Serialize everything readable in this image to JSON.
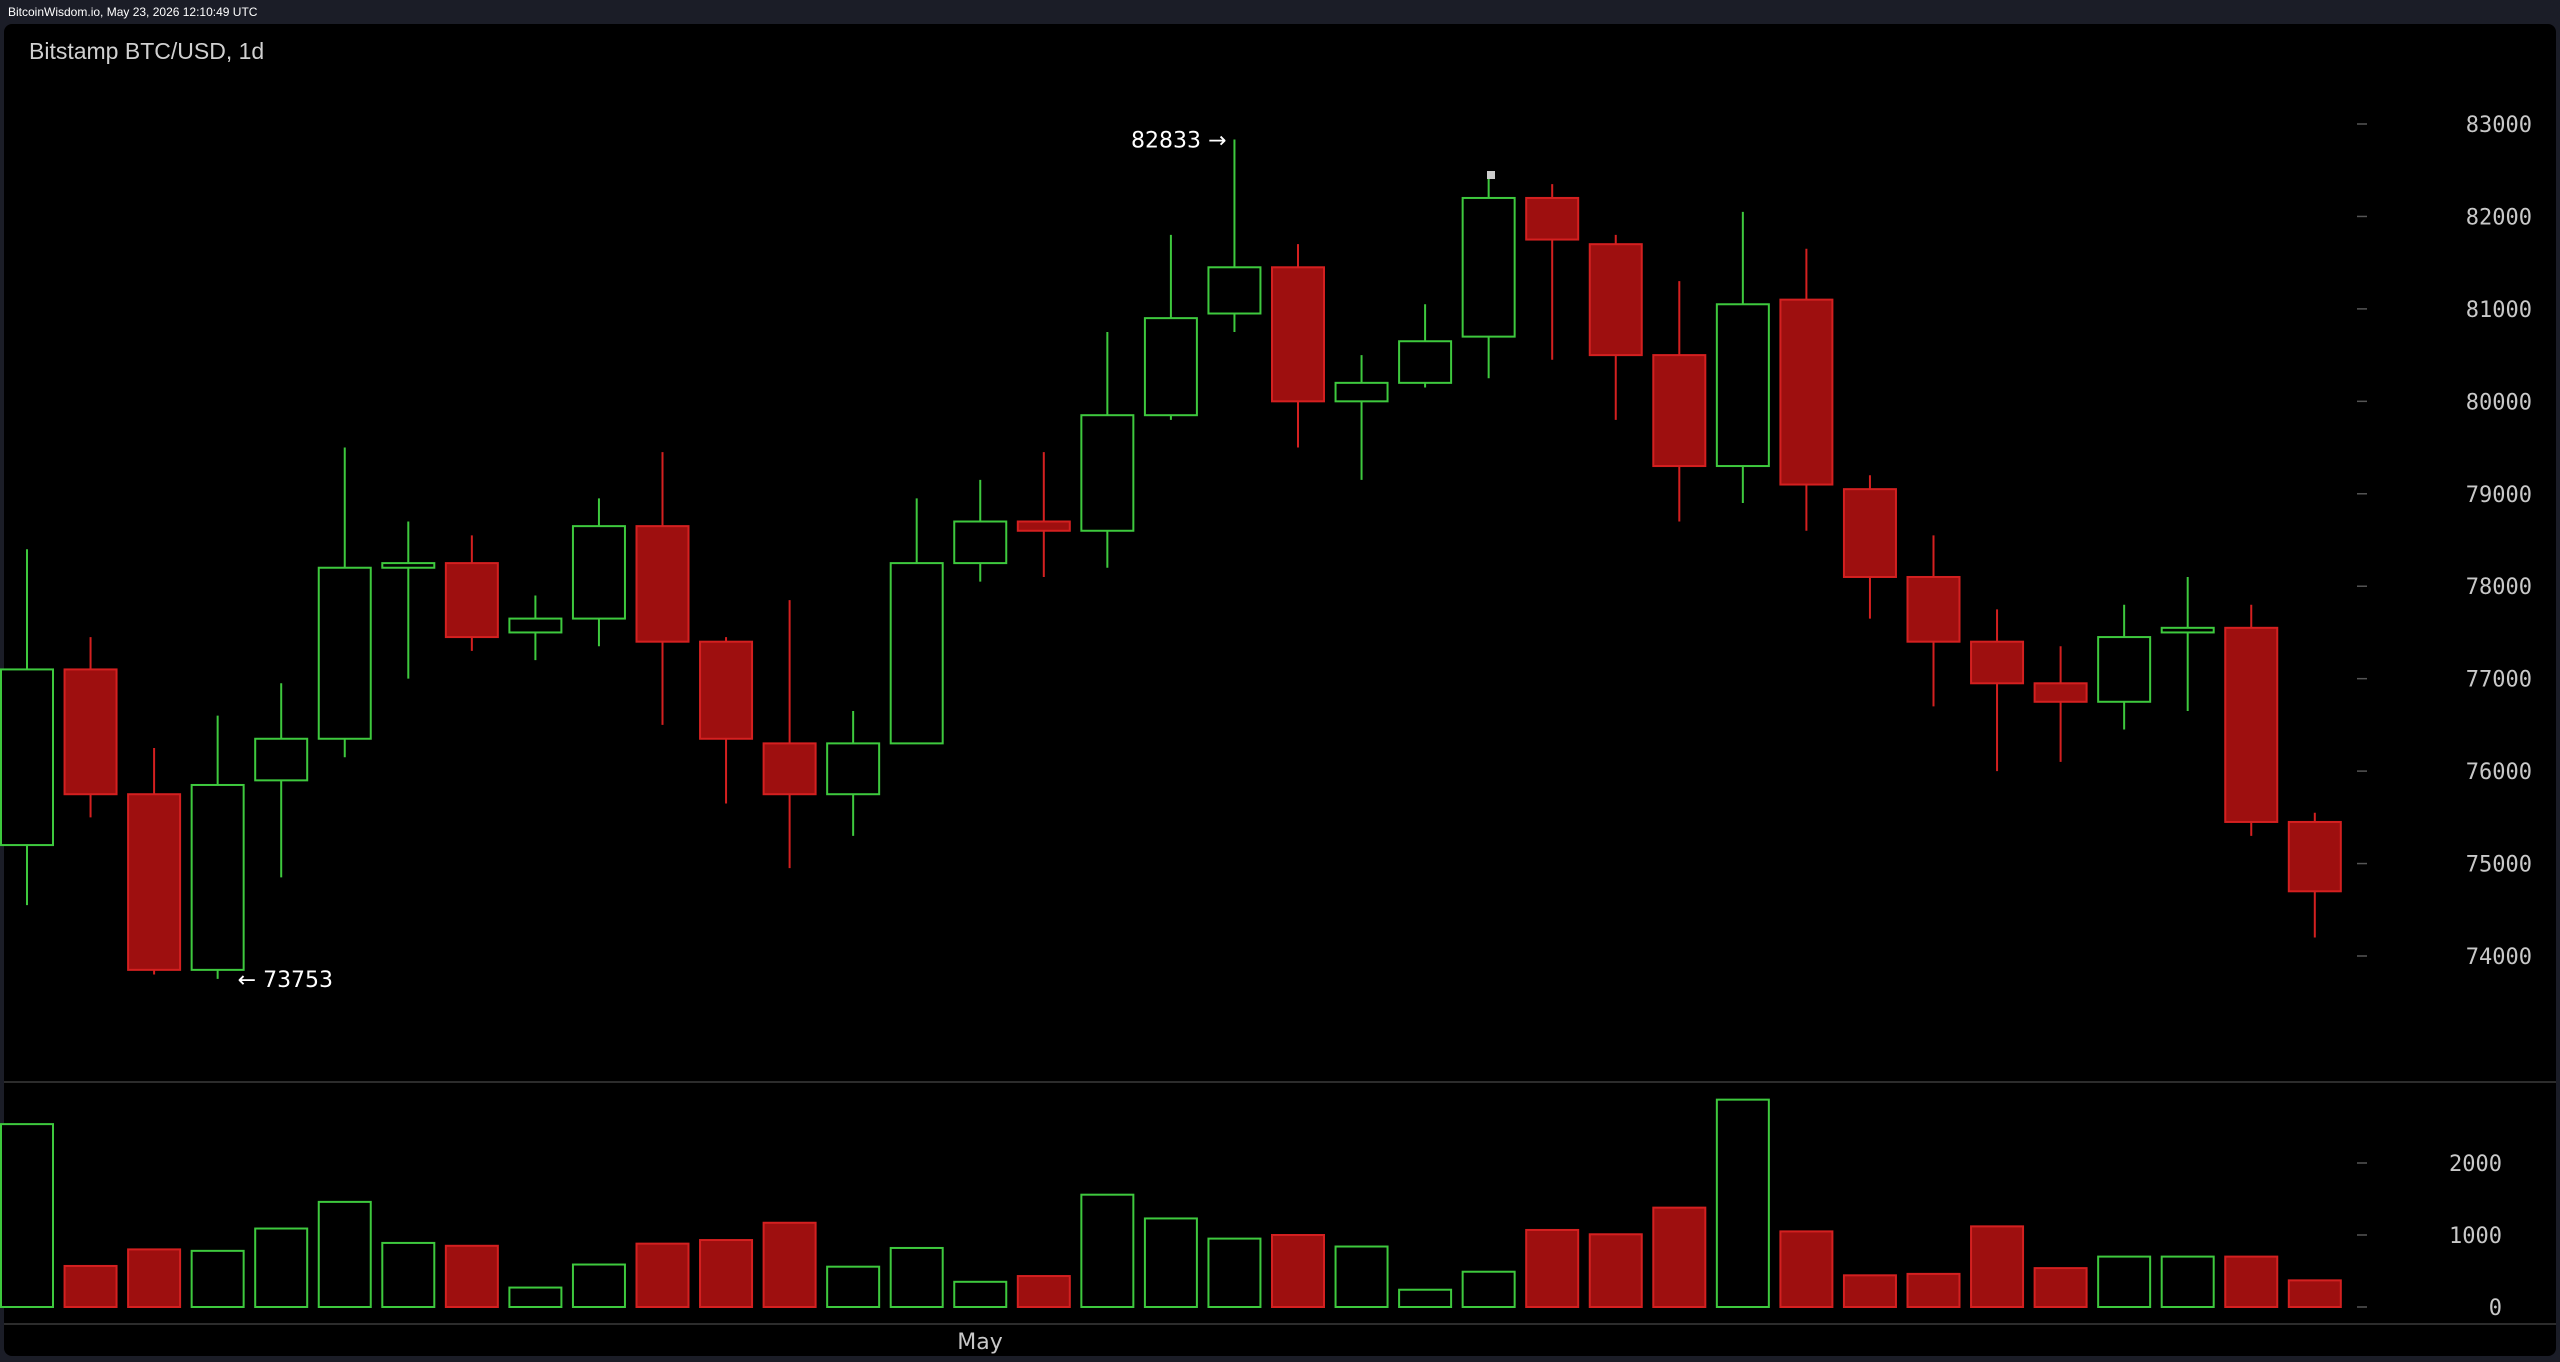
{
  "header": {
    "source": "BitcoinWisdom.io, May 23, 2026 12:10:49 UTC"
  },
  "chart_data": {
    "type": "candlestick",
    "title": "Bitstamp BTC/USD, 1d",
    "x_label": "May",
    "price_axis": {
      "ticks": [
        74000,
        75000,
        76000,
        77000,
        78000,
        79000,
        80000,
        81000,
        82000,
        83000
      ],
      "range": [
        72700,
        84000
      ]
    },
    "volume_axis": {
      "ticks": [
        0,
        1000,
        2000
      ],
      "range": [
        0,
        2900
      ]
    },
    "annotations": {
      "high": {
        "value": 82833,
        "label": "82833 →"
      },
      "low": {
        "value": 73753,
        "label": "← 73753"
      }
    },
    "colors": {
      "up": "#3ec93e",
      "down": "#9e0f0f",
      "down_border": "#d42020"
    },
    "candles": [
      {
        "open": 75200,
        "high": 78400,
        "low": 74550,
        "close": 77100,
        "volume": 2540
      },
      {
        "open": 77100,
        "high": 77450,
        "low": 75500,
        "close": 75750,
        "volume": 570
      },
      {
        "open": 75750,
        "high": 76250,
        "low": 73800,
        "close": 73850,
        "volume": 800
      },
      {
        "open": 73850,
        "high": 76600,
        "low": 73753,
        "close": 75850,
        "volume": 780
      },
      {
        "open": 75900,
        "high": 76950,
        "low": 74850,
        "close": 76350,
        "volume": 1090
      },
      {
        "open": 76350,
        "high": 79500,
        "low": 76150,
        "close": 78200,
        "volume": 1460
      },
      {
        "open": 78200,
        "high": 78700,
        "low": 77000,
        "close": 78250,
        "volume": 890
      },
      {
        "open": 78250,
        "high": 78550,
        "low": 77300,
        "close": 77450,
        "volume": 850
      },
      {
        "open": 77500,
        "high": 77900,
        "low": 77200,
        "close": 77650,
        "volume": 270
      },
      {
        "open": 77650,
        "high": 78950,
        "low": 77350,
        "close": 78650,
        "volume": 590
      },
      {
        "open": 78650,
        "high": 79450,
        "low": 76500,
        "close": 77400,
        "volume": 880
      },
      {
        "open": 77400,
        "high": 77450,
        "low": 75650,
        "close": 76350,
        "volume": 930
      },
      {
        "open": 76300,
        "high": 77850,
        "low": 74950,
        "close": 75750,
        "volume": 1170
      },
      {
        "open": 75750,
        "high": 76650,
        "low": 75300,
        "close": 76300,
        "volume": 560
      },
      {
        "open": 76300,
        "high": 78950,
        "low": 76300,
        "close": 78250,
        "volume": 820
      },
      {
        "open": 78250,
        "high": 79150,
        "low": 78050,
        "close": 78700,
        "volume": 350
      },
      {
        "open": 78700,
        "high": 79450,
        "low": 78100,
        "close": 78600,
        "volume": 430
      },
      {
        "open": 78600,
        "high": 80750,
        "low": 78200,
        "close": 79850,
        "volume": 1560
      },
      {
        "open": 79850,
        "high": 81800,
        "low": 79800,
        "close": 80900,
        "volume": 1230
      },
      {
        "open": 80950,
        "high": 82833,
        "low": 80750,
        "close": 81450,
        "volume": 950
      },
      {
        "open": 81450,
        "high": 81700,
        "low": 79500,
        "close": 80000,
        "volume": 1000
      },
      {
        "open": 80000,
        "high": 80500,
        "low": 79150,
        "close": 80200,
        "volume": 840
      },
      {
        "open": 80200,
        "high": 81050,
        "low": 80150,
        "close": 80650,
        "volume": 240
      },
      {
        "open": 80700,
        "high": 82450,
        "low": 80250,
        "close": 82200,
        "volume": 490
      },
      {
        "open": 82200,
        "high": 82350,
        "low": 80450,
        "close": 81750,
        "volume": 1070
      },
      {
        "open": 81700,
        "high": 81800,
        "low": 79800,
        "close": 80500,
        "volume": 1010
      },
      {
        "open": 80500,
        "high": 81300,
        "low": 78700,
        "close": 79300,
        "volume": 1380
      },
      {
        "open": 79300,
        "high": 82050,
        "low": 78900,
        "close": 81050,
        "volume": 2880
      },
      {
        "open": 81100,
        "high": 81650,
        "low": 78600,
        "close": 79100,
        "volume": 1050
      },
      {
        "open": 79050,
        "high": 79200,
        "low": 77650,
        "close": 78100,
        "volume": 440
      },
      {
        "open": 78100,
        "high": 78550,
        "low": 76700,
        "close": 77400,
        "volume": 460
      },
      {
        "open": 77400,
        "high": 77750,
        "low": 76000,
        "close": 76950,
        "volume": 1120
      },
      {
        "open": 76950,
        "high": 77350,
        "low": 76100,
        "close": 76750,
        "volume": 540
      },
      {
        "open": 76750,
        "high": 77800,
        "low": 76450,
        "close": 77450,
        "volume": 700
      },
      {
        "open": 77500,
        "high": 78100,
        "low": 76650,
        "close": 77550,
        "volume": 700
      },
      {
        "open": 77550,
        "high": 77800,
        "low": 75300,
        "close": 75450,
        "volume": 700
      },
      {
        "open": 75450,
        "high": 75550,
        "low": 74200,
        "close": 74700,
        "volume": 370
      }
    ]
  }
}
